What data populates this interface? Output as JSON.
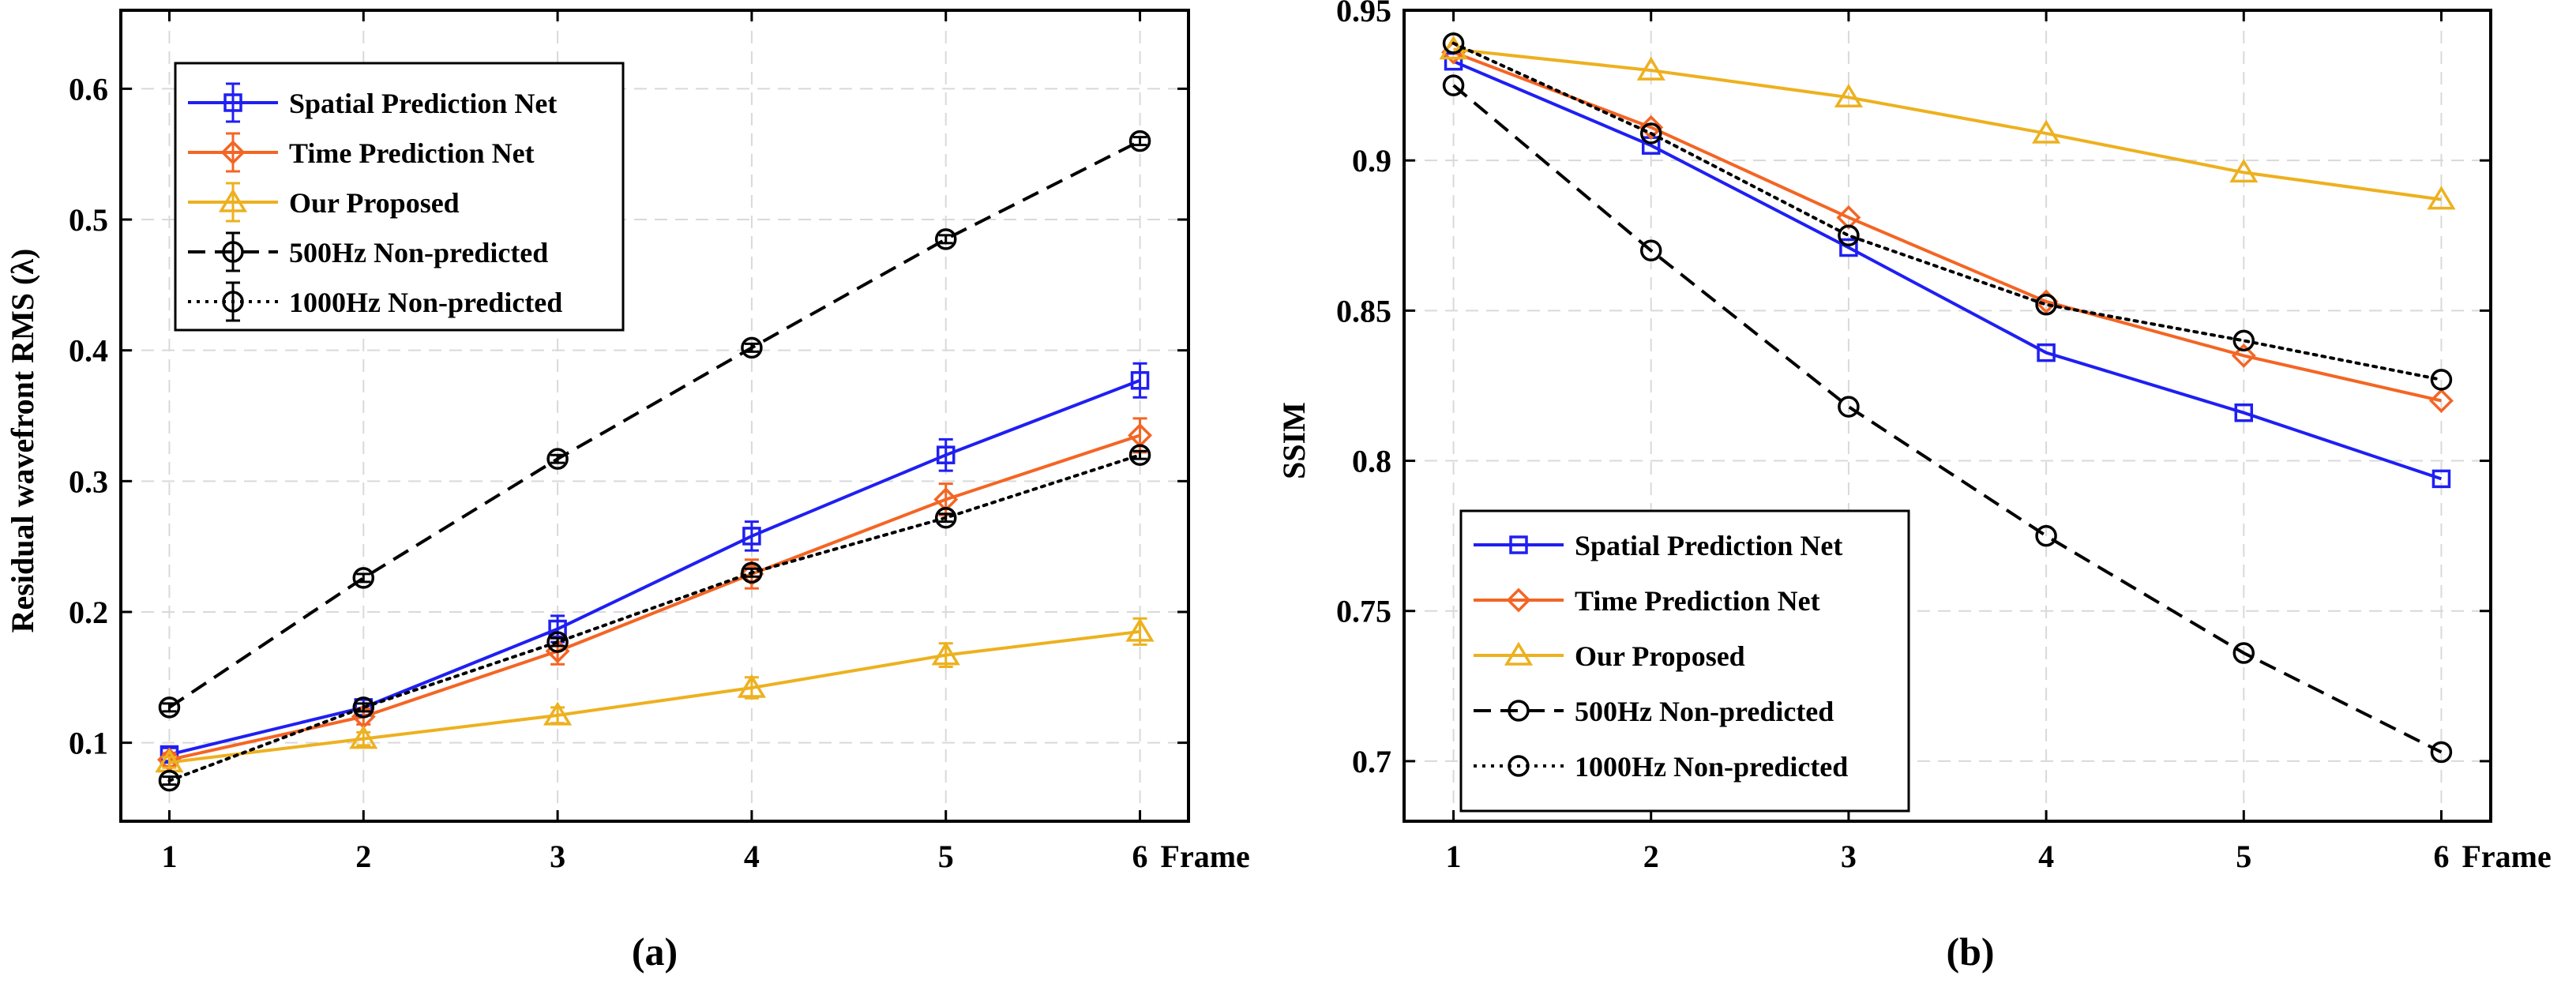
{
  "chart_data": [
    {
      "type": "line",
      "panel_label": "(a)",
      "xlabel": "Frame",
      "ylabel": "Residual wavefront RMS (λ)",
      "x": [
        1,
        2,
        3,
        4,
        5,
        6
      ],
      "xlim": [
        0.75,
        6.25
      ],
      "ylim": [
        0.04,
        0.66
      ],
      "yticks": [
        0.1,
        0.2,
        0.3,
        0.4,
        0.5,
        0.6
      ],
      "ytick_labels": [
        "0.1",
        "0.2",
        "0.3",
        "0.4",
        "0.5",
        "0.6"
      ],
      "xtick_labels": [
        "1",
        "2",
        "3",
        "4",
        "5",
        "6"
      ],
      "grid": true,
      "legend_position": "top-left",
      "series": [
        {
          "name": "Spatial Prediction Net",
          "color": "#1f1ff2",
          "marker": "square",
          "dash": "solid",
          "values": [
            0.091,
            0.127,
            0.187,
            0.258,
            0.32,
            0.377
          ],
          "errors": [
            0.005,
            0.006,
            0.01,
            0.011,
            0.012,
            0.013
          ]
        },
        {
          "name": "Time Prediction Net",
          "color": "#f46524",
          "marker": "diamond",
          "dash": "solid",
          "values": [
            0.087,
            0.12,
            0.17,
            0.229,
            0.286,
            0.335
          ],
          "errors": [
            0.005,
            0.006,
            0.01,
            0.011,
            0.012,
            0.013
          ]
        },
        {
          "name": "Our Proposed",
          "color": "#edb11f",
          "marker": "triangle",
          "dash": "solid",
          "values": [
            0.085,
            0.103,
            0.121,
            0.142,
            0.167,
            0.185
          ],
          "errors": [
            0.004,
            0.005,
            0.006,
            0.008,
            0.009,
            0.01
          ]
        },
        {
          "name": "500Hz Non-predicted",
          "color": "#000000",
          "marker": "circle",
          "dash": "dashed",
          "values": [
            0.127,
            0.226,
            0.317,
            0.402,
            0.485,
            0.56
          ],
          "errors": [
            0.003,
            0.003,
            0.003,
            0.003,
            0.003,
            0.003
          ]
        },
        {
          "name": "1000Hz Non-predicted",
          "color": "#000000",
          "marker": "circle",
          "dash": "dotted",
          "values": [
            0.071,
            0.127,
            0.177,
            0.23,
            0.272,
            0.32
          ],
          "errors": [
            0.003,
            0.003,
            0.003,
            0.003,
            0.003,
            0.003
          ]
        }
      ]
    },
    {
      "type": "line",
      "panel_label": "(b)",
      "xlabel": "Frame",
      "ylabel": "SSIM",
      "x": [
        1,
        2,
        3,
        4,
        5,
        6
      ],
      "xlim": [
        0.75,
        6.25
      ],
      "ylim": [
        0.68,
        0.95
      ],
      "yticks": [
        0.7,
        0.75,
        0.8,
        0.85,
        0.9,
        0.95
      ],
      "ytick_labels": [
        "0.7",
        "0.75",
        "0.8",
        "0.85",
        "0.9",
        "0.95"
      ],
      "xtick_labels": [
        "1",
        "2",
        "3",
        "4",
        "5",
        "6"
      ],
      "grid": true,
      "legend_position": "bottom-left",
      "series": [
        {
          "name": "Spatial Prediction Net",
          "color": "#1f1ff2",
          "marker": "square",
          "dash": "solid",
          "values": [
            0.933,
            0.905,
            0.871,
            0.836,
            0.816,
            0.794
          ]
        },
        {
          "name": "Time Prediction Net",
          "color": "#f46524",
          "marker": "diamond",
          "dash": "solid",
          "values": [
            0.936,
            0.911,
            0.881,
            0.853,
            0.835,
            0.82
          ]
        },
        {
          "name": "Our Proposed",
          "color": "#edb11f",
          "marker": "triangle",
          "dash": "solid",
          "values": [
            0.937,
            0.93,
            0.921,
            0.909,
            0.896,
            0.887
          ]
        },
        {
          "name": "500Hz Non-predicted",
          "color": "#000000",
          "marker": "circle",
          "dash": "dashed",
          "values": [
            0.925,
            0.87,
            0.818,
            0.775,
            0.736,
            0.703
          ]
        },
        {
          "name": "1000Hz Non-predicted",
          "color": "#000000",
          "marker": "circle",
          "dash": "dotted",
          "values": [
            0.939,
            0.909,
            0.875,
            0.852,
            0.84,
            0.827
          ]
        }
      ]
    }
  ]
}
